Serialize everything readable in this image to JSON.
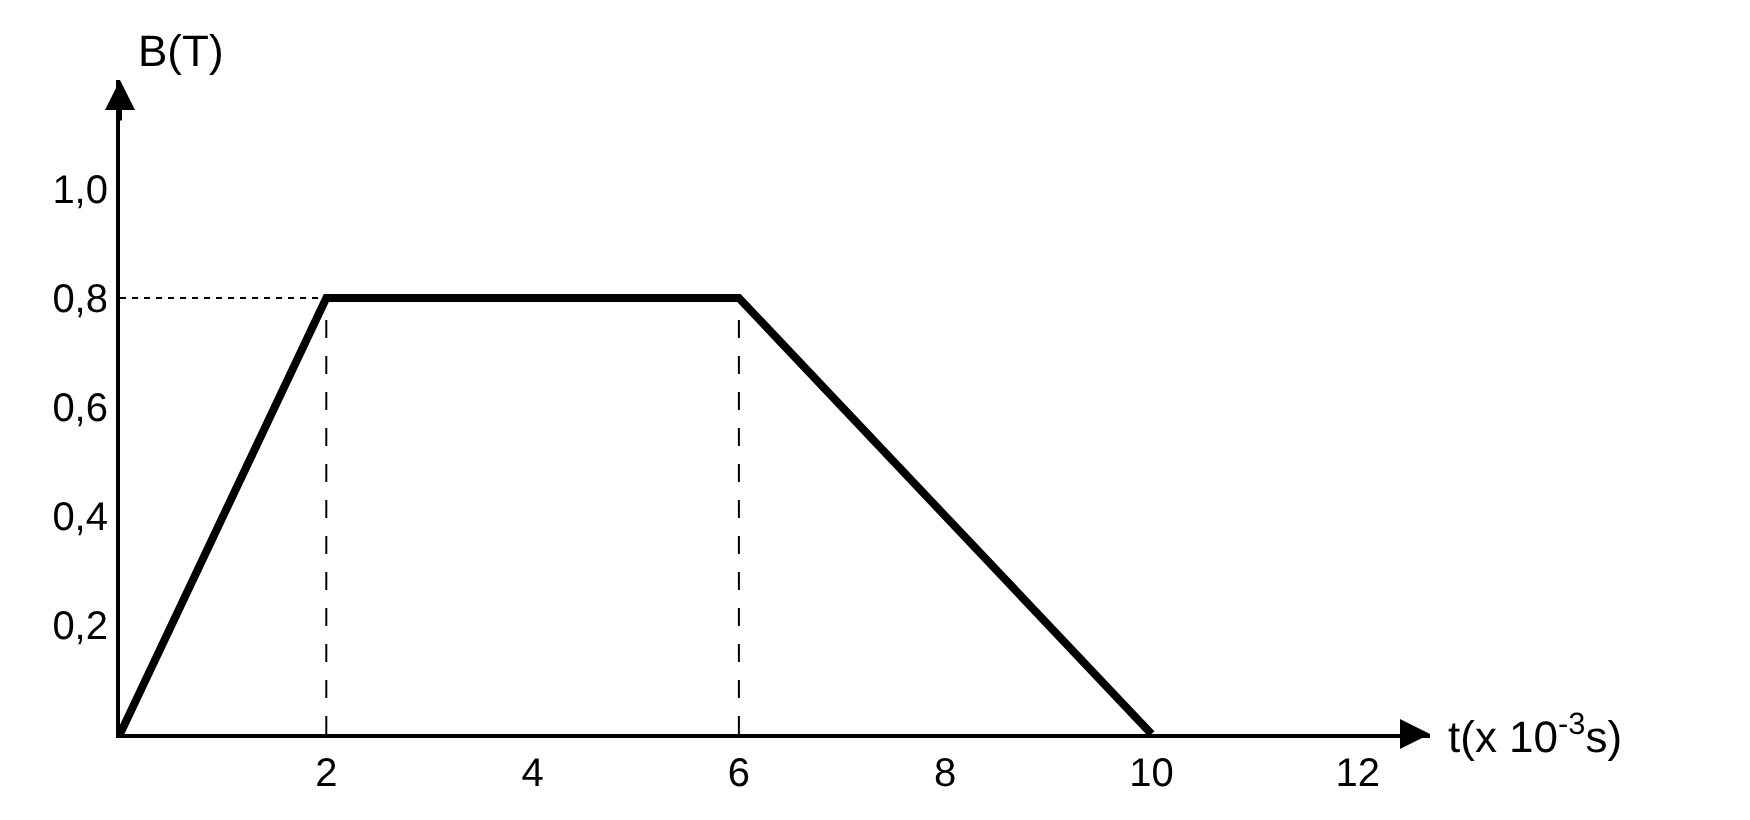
{
  "chart_data": {
    "type": "line",
    "xlabel": "t(x 10$^{-3}$s)",
    "ylabel": "B(T)",
    "x": [
      0,
      2,
      6,
      10
    ],
    "series": [
      {
        "color": "#000000",
        "values": [
          0,
          0.8,
          0.8,
          0
        ]
      }
    ],
    "xlim": [
      0,
      12.7
    ],
    "ylim": [
      0,
      1.2
    ],
    "xticks": [
      2,
      4,
      6,
      8,
      10,
      12
    ],
    "yticks": [
      {
        "value": 0.2,
        "label": "0,2"
      },
      {
        "value": 0.4,
        "label": "0,4"
      },
      {
        "value": 0.6,
        "label": "0,6"
      },
      {
        "value": 0.8,
        "label": "0,8"
      },
      {
        "value": 1.0,
        "label": "1,0"
      }
    ],
    "ref_lines": [
      {
        "axis": "x",
        "value": 2,
        "line_style": "dashed"
      },
      {
        "axis": "x",
        "value": 6,
        "line_style": "dashed"
      },
      {
        "axis": "y",
        "value": 0.8,
        "line_style": "dotted"
      }
    ],
    "marker": "none",
    "line_style": "solid"
  }
}
